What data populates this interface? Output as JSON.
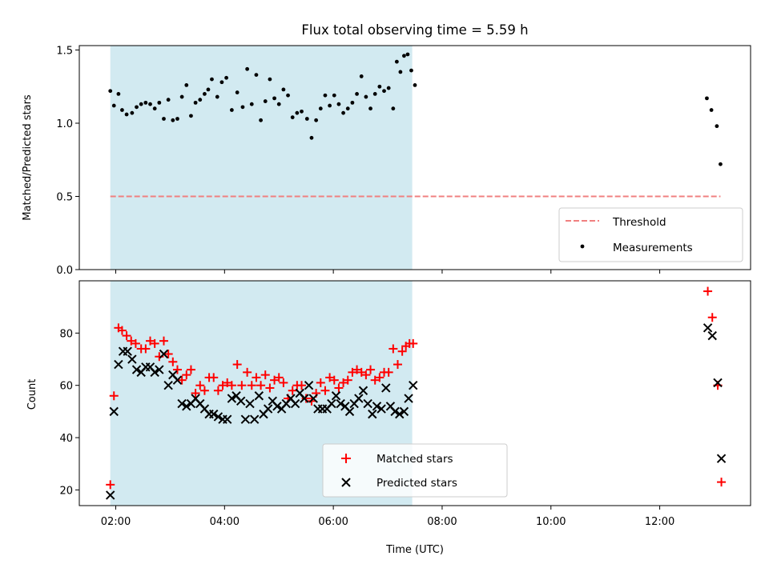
{
  "chart_data": [
    {
      "type": "scatter",
      "title": "Flux total observing time = 5.59 h",
      "xlabel": "",
      "ylabel": "Matched/Predicted stars",
      "ylim": [
        0.0,
        1.53
      ],
      "xlim_hours": [
        1.33,
        13.67
      ],
      "yticks": [
        "0.0",
        "0.5",
        "1.0",
        "1.5"
      ],
      "xticks": [
        "02:00",
        "04:00",
        "06:00",
        "08:00",
        "10:00",
        "12:00"
      ],
      "shaded_interval": [
        "01:54",
        "07:27"
      ],
      "legend_position": "lower right",
      "series": [
        {
          "name": "Threshold",
          "style": "dashed line",
          "color": "#f08080",
          "x": [
            "01:54",
            "13:07"
          ],
          "y": [
            0.5,
            0.5
          ]
        },
        {
          "name": "Measurements",
          "style": "dot",
          "color": "#000000",
          "points": [
            [
              "01:54",
              1.22
            ],
            [
              "01:58",
              1.12
            ],
            [
              "02:03",
              1.2
            ],
            [
              "02:07",
              1.09
            ],
            [
              "02:12",
              1.06
            ],
            [
              "02:18",
              1.07
            ],
            [
              "02:23",
              1.11
            ],
            [
              "02:28",
              1.13
            ],
            [
              "02:33",
              1.14
            ],
            [
              "02:38",
              1.13
            ],
            [
              "02:43",
              1.1
            ],
            [
              "02:48",
              1.14
            ],
            [
              "02:53",
              1.03
            ],
            [
              "02:58",
              1.16
            ],
            [
              "03:03",
              1.02
            ],
            [
              "03:08",
              1.03
            ],
            [
              "03:13",
              1.18
            ],
            [
              "03:18",
              1.26
            ],
            [
              "03:23",
              1.05
            ],
            [
              "03:28",
              1.14
            ],
            [
              "03:33",
              1.16
            ],
            [
              "03:38",
              1.2
            ],
            [
              "03:42",
              1.23
            ],
            [
              "03:46",
              1.3
            ],
            [
              "03:52",
              1.18
            ],
            [
              "03:57",
              1.28
            ],
            [
              "04:02",
              1.31
            ],
            [
              "04:08",
              1.09
            ],
            [
              "04:14",
              1.21
            ],
            [
              "04:20",
              1.11
            ],
            [
              "04:25",
              1.37
            ],
            [
              "04:30",
              1.13
            ],
            [
              "04:35",
              1.33
            ],
            [
              "04:40",
              1.02
            ],
            [
              "04:45",
              1.15
            ],
            [
              "04:50",
              1.3
            ],
            [
              "04:55",
              1.17
            ],
            [
              "05:00",
              1.13
            ],
            [
              "05:05",
              1.23
            ],
            [
              "05:10",
              1.19
            ],
            [
              "05:15",
              1.04
            ],
            [
              "05:20",
              1.07
            ],
            [
              "05:25",
              1.08
            ],
            [
              "05:31",
              1.03
            ],
            [
              "05:36",
              0.9
            ],
            [
              "05:41",
              1.02
            ],
            [
              "05:46",
              1.1
            ],
            [
              "05:51",
              1.19
            ],
            [
              "05:56",
              1.12
            ],
            [
              "06:01",
              1.19
            ],
            [
              "06:06",
              1.13
            ],
            [
              "06:11",
              1.07
            ],
            [
              "06:16",
              1.1
            ],
            [
              "06:21",
              1.14
            ],
            [
              "06:26",
              1.2
            ],
            [
              "06:31",
              1.32
            ],
            [
              "06:36",
              1.18
            ],
            [
              "06:41",
              1.1
            ],
            [
              "06:46",
              1.2
            ],
            [
              "06:51",
              1.25
            ],
            [
              "06:56",
              1.22
            ],
            [
              "07:01",
              1.24
            ],
            [
              "07:06",
              1.1
            ],
            [
              "07:10",
              1.42
            ],
            [
              "07:14",
              1.35
            ],
            [
              "07:18",
              1.46
            ],
            [
              "07:22",
              1.47
            ],
            [
              "07:26",
              1.36
            ],
            [
              "07:30",
              1.26
            ],
            [
              "12:52",
              1.17
            ],
            [
              "12:57",
              1.09
            ],
            [
              "13:03",
              0.98
            ],
            [
              "13:07",
              0.72
            ]
          ]
        }
      ]
    },
    {
      "type": "scatter",
      "title": "",
      "xlabel": "Time (UTC)",
      "ylabel": "Count",
      "ylim": [
        14,
        100
      ],
      "xlim_hours": [
        1.33,
        13.67
      ],
      "yticks": [
        "20",
        "40",
        "60",
        "80"
      ],
      "xticks": [
        "02:00",
        "04:00",
        "06:00",
        "08:00",
        "10:00",
        "12:00"
      ],
      "shaded_interval": [
        "01:54",
        "07:27"
      ],
      "legend_position": "lower center",
      "series": [
        {
          "name": "Matched stars",
          "marker": "+",
          "color": "#ff0000",
          "points": [
            [
              "01:54",
              22
            ],
            [
              "01:58",
              56
            ],
            [
              "02:03",
              82
            ],
            [
              "02:07",
              81
            ],
            [
              "02:12",
              79
            ],
            [
              "02:17",
              77
            ],
            [
              "02:22",
              76
            ],
            [
              "02:28",
              74
            ],
            [
              "02:33",
              74
            ],
            [
              "02:38",
              77
            ],
            [
              "02:43",
              76
            ],
            [
              "02:48",
              71
            ],
            [
              "02:53",
              77
            ],
            [
              "02:58",
              72
            ],
            [
              "03:03",
              69
            ],
            [
              "03:08",
              66
            ],
            [
              "03:13",
              62
            ],
            [
              "03:18",
              64
            ],
            [
              "03:23",
              66
            ],
            [
              "03:28",
              57
            ],
            [
              "03:33",
              60
            ],
            [
              "03:38",
              58
            ],
            [
              "03:43",
              63
            ],
            [
              "03:48",
              63
            ],
            [
              "03:53",
              58
            ],
            [
              "03:58",
              60
            ],
            [
              "04:03",
              61
            ],
            [
              "04:08",
              60
            ],
            [
              "04:14",
              68
            ],
            [
              "04:19",
              60
            ],
            [
              "04:25",
              65
            ],
            [
              "04:30",
              60
            ],
            [
              "04:35",
              63
            ],
            [
              "04:40",
              60
            ],
            [
              "04:45",
              64
            ],
            [
              "04:50",
              59
            ],
            [
              "04:55",
              62
            ],
            [
              "05:00",
              63
            ],
            [
              "05:05",
              61
            ],
            [
              "05:10",
              55
            ],
            [
              "05:15",
              58
            ],
            [
              "05:20",
              60
            ],
            [
              "05:25",
              60
            ],
            [
              "05:30",
              55
            ],
            [
              "05:36",
              54
            ],
            [
              "05:41",
              57
            ],
            [
              "05:46",
              61
            ],
            [
              "05:51",
              58
            ],
            [
              "05:56",
              63
            ],
            [
              "06:01",
              62
            ],
            [
              "06:06",
              59
            ],
            [
              "06:11",
              61
            ],
            [
              "06:16",
              62
            ],
            [
              "06:21",
              65
            ],
            [
              "06:26",
              66
            ],
            [
              "06:31",
              65
            ],
            [
              "06:36",
              64
            ],
            [
              "06:41",
              66
            ],
            [
              "06:46",
              62
            ],
            [
              "06:51",
              63
            ],
            [
              "06:56",
              65
            ],
            [
              "07:01",
              65
            ],
            [
              "07:06",
              74
            ],
            [
              "07:11",
              68
            ],
            [
              "07:16",
              73
            ],
            [
              "07:20",
              75
            ],
            [
              "07:24",
              76
            ],
            [
              "07:28",
              76
            ],
            [
              "12:53",
              96
            ],
            [
              "12:58",
              86
            ],
            [
              "13:04",
              60
            ],
            [
              "13:08",
              23
            ]
          ]
        },
        {
          "name": "Predicted stars",
          "marker": "x",
          "color": "#000000",
          "points": [
            [
              "01:54",
              18
            ],
            [
              "01:58",
              50
            ],
            [
              "02:03",
              68
            ],
            [
              "02:08",
              73
            ],
            [
              "02:13",
              73
            ],
            [
              "02:18",
              70
            ],
            [
              "02:23",
              66
            ],
            [
              "02:28",
              65
            ],
            [
              "02:33",
              67
            ],
            [
              "02:38",
              67
            ],
            [
              "02:43",
              65
            ],
            [
              "02:48",
              66
            ],
            [
              "02:53",
              72
            ],
            [
              "02:58",
              60
            ],
            [
              "03:03",
              64
            ],
            [
              "03:08",
              62
            ],
            [
              "03:13",
              53
            ],
            [
              "03:18",
              52
            ],
            [
              "03:23",
              53
            ],
            [
              "03:28",
              55
            ],
            [
              "03:33",
              53
            ],
            [
              "03:38",
              51
            ],
            [
              "03:43",
              49
            ],
            [
              "03:48",
              49
            ],
            [
              "03:53",
              48
            ],
            [
              "03:58",
              47
            ],
            [
              "04:03",
              47
            ],
            [
              "04:08",
              55
            ],
            [
              "04:13",
              56
            ],
            [
              "04:18",
              54
            ],
            [
              "04:23",
              47
            ],
            [
              "04:28",
              53
            ],
            [
              "04:33",
              47
            ],
            [
              "04:38",
              56
            ],
            [
              "04:43",
              49
            ],
            [
              "04:48",
              51
            ],
            [
              "04:53",
              54
            ],
            [
              "04:58",
              52
            ],
            [
              "05:03",
              51
            ],
            [
              "05:08",
              53
            ],
            [
              "05:13",
              55
            ],
            [
              "05:18",
              53
            ],
            [
              "05:23",
              57
            ],
            [
              "05:28",
              55
            ],
            [
              "05:33",
              60
            ],
            [
              "05:38",
              55
            ],
            [
              "05:43",
              51
            ],
            [
              "05:48",
              51
            ],
            [
              "05:53",
              51
            ],
            [
              "05:58",
              53
            ],
            [
              "06:03",
              56
            ],
            [
              "06:08",
              53
            ],
            [
              "06:13",
              52
            ],
            [
              "06:18",
              50
            ],
            [
              "06:23",
              53
            ],
            [
              "06:28",
              55
            ],
            [
              "06:33",
              58
            ],
            [
              "06:38",
              53
            ],
            [
              "06:43",
              49
            ],
            [
              "06:48",
              52
            ],
            [
              "06:53",
              51
            ],
            [
              "06:58",
              59
            ],
            [
              "07:03",
              52
            ],
            [
              "07:08",
              50
            ],
            [
              "07:13",
              49
            ],
            [
              "07:18",
              50
            ],
            [
              "07:23",
              55
            ],
            [
              "07:28",
              60
            ],
            [
              "12:53",
              82
            ],
            [
              "12:58",
              79
            ],
            [
              "13:04",
              61
            ],
            [
              "13:08",
              32
            ]
          ]
        }
      ]
    }
  ]
}
